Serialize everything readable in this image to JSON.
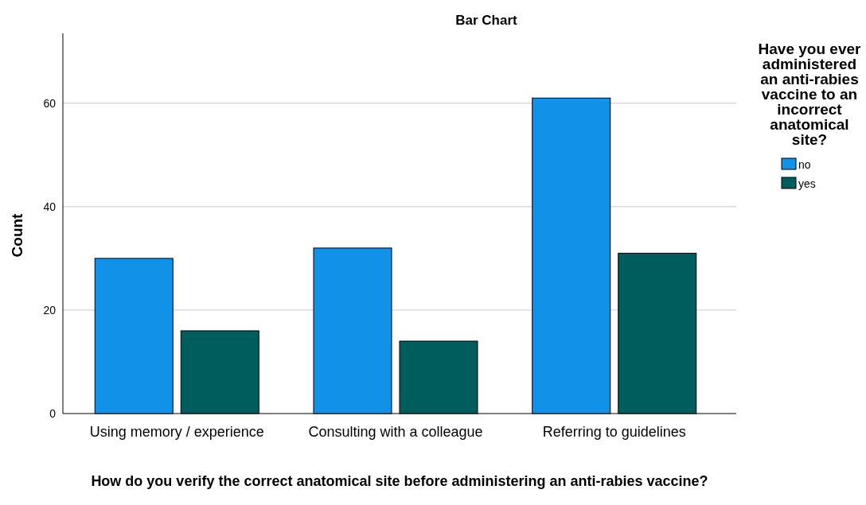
{
  "chart_data": {
    "type": "bar",
    "title": "Bar Chart",
    "xlabel": "How do you verify the correct anatomical site before administering an anti-rabies vaccine?",
    "ylabel": "Count",
    "legend_title": "Have you ever administered an anti-rabies vaccine to an incorrect anatomical site?",
    "categories": [
      "Using memory / experience",
      "Consulting with a colleague",
      "Referring to guidelines"
    ],
    "series": [
      {
        "name": "no",
        "color": "#1192e8",
        "values": [
          30,
          32,
          61
        ]
      },
      {
        "name": "yes",
        "color": "#005d5d",
        "values": [
          16,
          14,
          31
        ]
      }
    ],
    "ylim": [
      0,
      73.5
    ],
    "yticks": [
      0,
      20,
      40,
      60
    ],
    "grid": "y",
    "legend": "right"
  }
}
